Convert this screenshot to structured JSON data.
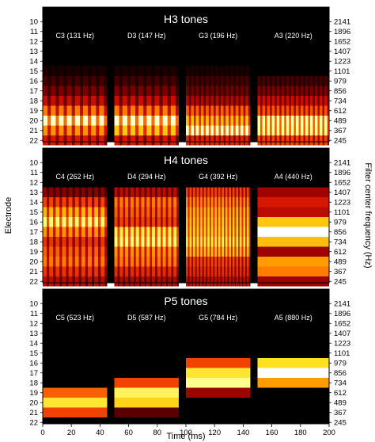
{
  "chart_data": [
    {
      "type": "heatmap",
      "title": "H3 tones",
      "ylabel_left": "",
      "ylabel_right": "",
      "electrodes": [
        10,
        11,
        12,
        13,
        14,
        15,
        16,
        17,
        18,
        19,
        20,
        21,
        22
      ],
      "frequencies_hz": [
        2141,
        1896,
        1652,
        1407,
        1223,
        1101,
        979,
        856,
        734,
        612,
        489,
        367,
        245
      ],
      "tones": [
        {
          "label": "C3 (131 Hz)",
          "t_start_ms": 0,
          "t_end_ms": 45,
          "pattern": "pulsed",
          "pulses": 8,
          "intensity": {
            "15": 0.05,
            "16": 0.12,
            "17": 0.2,
            "18": 0.32,
            "19": 0.55,
            "20": 0.95,
            "21": 0.6,
            "22": 0.35
          }
        },
        {
          "label": "D3 (147 Hz)",
          "t_start_ms": 50,
          "t_end_ms": 95,
          "pattern": "pulsed",
          "pulses": 8,
          "intensity": {
            "15": 0.05,
            "16": 0.12,
            "17": 0.2,
            "18": 0.32,
            "19": 0.55,
            "20": 0.95,
            "21": 0.72,
            "22": 0.35
          }
        },
        {
          "label": "G3 (196 Hz)",
          "t_start_ms": 100,
          "t_end_ms": 145,
          "pattern": "pulsed",
          "pulses": 13,
          "intensity": {
            "15": 0.05,
            "16": 0.12,
            "17": 0.18,
            "18": 0.28,
            "19": 0.5,
            "20": 0.7,
            "21": 0.95,
            "22": 0.38
          }
        },
        {
          "label": "A3 (220 Hz)",
          "t_start_ms": 150,
          "t_end_ms": 200,
          "pattern": "pulsed",
          "pulses": 15,
          "intensity": {
            "16": 0.12,
            "17": 0.2,
            "18": 0.32,
            "19": 0.48,
            "20": 0.92,
            "21": 0.9,
            "22": 0.45
          }
        }
      ]
    },
    {
      "type": "heatmap",
      "title": "H4 tones",
      "ylabel_left": "Electrode",
      "ylabel_right": "Filter center frequency (Hz)",
      "electrodes": [
        10,
        11,
        12,
        13,
        14,
        15,
        16,
        17,
        18,
        19,
        20,
        21,
        22
      ],
      "frequencies_hz": [
        2141,
        1896,
        1652,
        1407,
        1223,
        1101,
        979,
        856,
        734,
        612,
        489,
        367,
        245
      ],
      "tones": [
        {
          "label": "C4 (262 Hz)",
          "t_start_ms": 0,
          "t_end_ms": 45,
          "pattern": "pulsed",
          "pulses": 10,
          "intensity": {
            "13": 0.22,
            "14": 0.45,
            "15": 0.68,
            "16": 0.88,
            "17": 0.6,
            "18": 0.42,
            "19": 0.5,
            "20": 0.55,
            "21": 0.42,
            "22": 0.3
          }
        },
        {
          "label": "D4 (294 Hz)",
          "t_start_ms": 50,
          "t_end_ms": 95,
          "pattern": "pulsed",
          "pulses": 12,
          "intensity": {
            "13": 0.3,
            "14": 0.55,
            "15": 0.5,
            "16": 0.45,
            "17": 0.82,
            "18": 0.88,
            "19": 0.6,
            "20": 0.55,
            "21": 0.4,
            "22": 0.28
          }
        },
        {
          "label": "G4 (392 Hz)",
          "t_start_ms": 100,
          "t_end_ms": 145,
          "pattern": "pulsed",
          "pulses": 18,
          "intensity": {
            "13": 0.45,
            "14": 0.58,
            "15": 0.68,
            "16": 0.72,
            "17": 0.75,
            "18": 0.82,
            "19": 0.7,
            "20": 0.45,
            "21": 0.4,
            "22": 0.3
          }
        },
        {
          "label": "A4 (440 Hz)",
          "t_start_ms": 150,
          "t_end_ms": 200,
          "pattern": "steady",
          "pulses": 0,
          "intensity": {
            "13": 0.25,
            "14": 0.35,
            "15": 0.3,
            "16": 0.72,
            "17": 1.0,
            "18": 0.7,
            "19": 0.25,
            "20": 0.62,
            "21": 0.55,
            "22": 0.25
          }
        }
      ]
    },
    {
      "type": "heatmap",
      "title": "P5 tones",
      "ylabel_left": "",
      "ylabel_right": "",
      "xlabel": "Time (ms)",
      "xticks": [
        0,
        20,
        40,
        60,
        80,
        100,
        120,
        140,
        160,
        180,
        200
      ],
      "xlim": [
        0,
        200
      ],
      "electrodes": [
        10,
        11,
        12,
        13,
        14,
        15,
        16,
        17,
        18,
        19,
        20,
        21,
        22
      ],
      "frequencies_hz": [
        2141,
        1896,
        1652,
        1407,
        1223,
        1101,
        979,
        856,
        734,
        612,
        489,
        367,
        245
      ],
      "tones": [
        {
          "label": "C5 (523 Hz)",
          "t_start_ms": 0,
          "t_end_ms": 45,
          "pattern": "steady",
          "pulses": 0,
          "intensity": {
            "19": 0.5,
            "20": 0.8,
            "21": 0.45
          }
        },
        {
          "label": "D5 (587 Hz)",
          "t_start_ms": 50,
          "t_end_ms": 95,
          "pattern": "steady",
          "pulses": 0,
          "intensity": {
            "18": 0.45,
            "19": 0.85,
            "20": 0.75,
            "21": 0.15
          }
        },
        {
          "label": "G5 (784 Hz)",
          "t_start_ms": 100,
          "t_end_ms": 145,
          "pattern": "steady",
          "pulses": 0,
          "intensity": {
            "16": 0.45,
            "17": 0.8,
            "18": 0.9,
            "19": 0.25
          }
        },
        {
          "label": "A5 (880 Hz)",
          "t_start_ms": 150,
          "t_end_ms": 200,
          "pattern": "steady",
          "pulses": 0,
          "intensity": {
            "16": 0.78,
            "17": 1.0,
            "18": 0.62
          }
        }
      ]
    }
  ],
  "colormap": {
    "name": "hot",
    "stops": [
      "#000000",
      "#3c0000",
      "#8c0000",
      "#d01000",
      "#f04000",
      "#ff8000",
      "#ffb000",
      "#ffe020",
      "#ffff80",
      "#ffffff"
    ]
  }
}
